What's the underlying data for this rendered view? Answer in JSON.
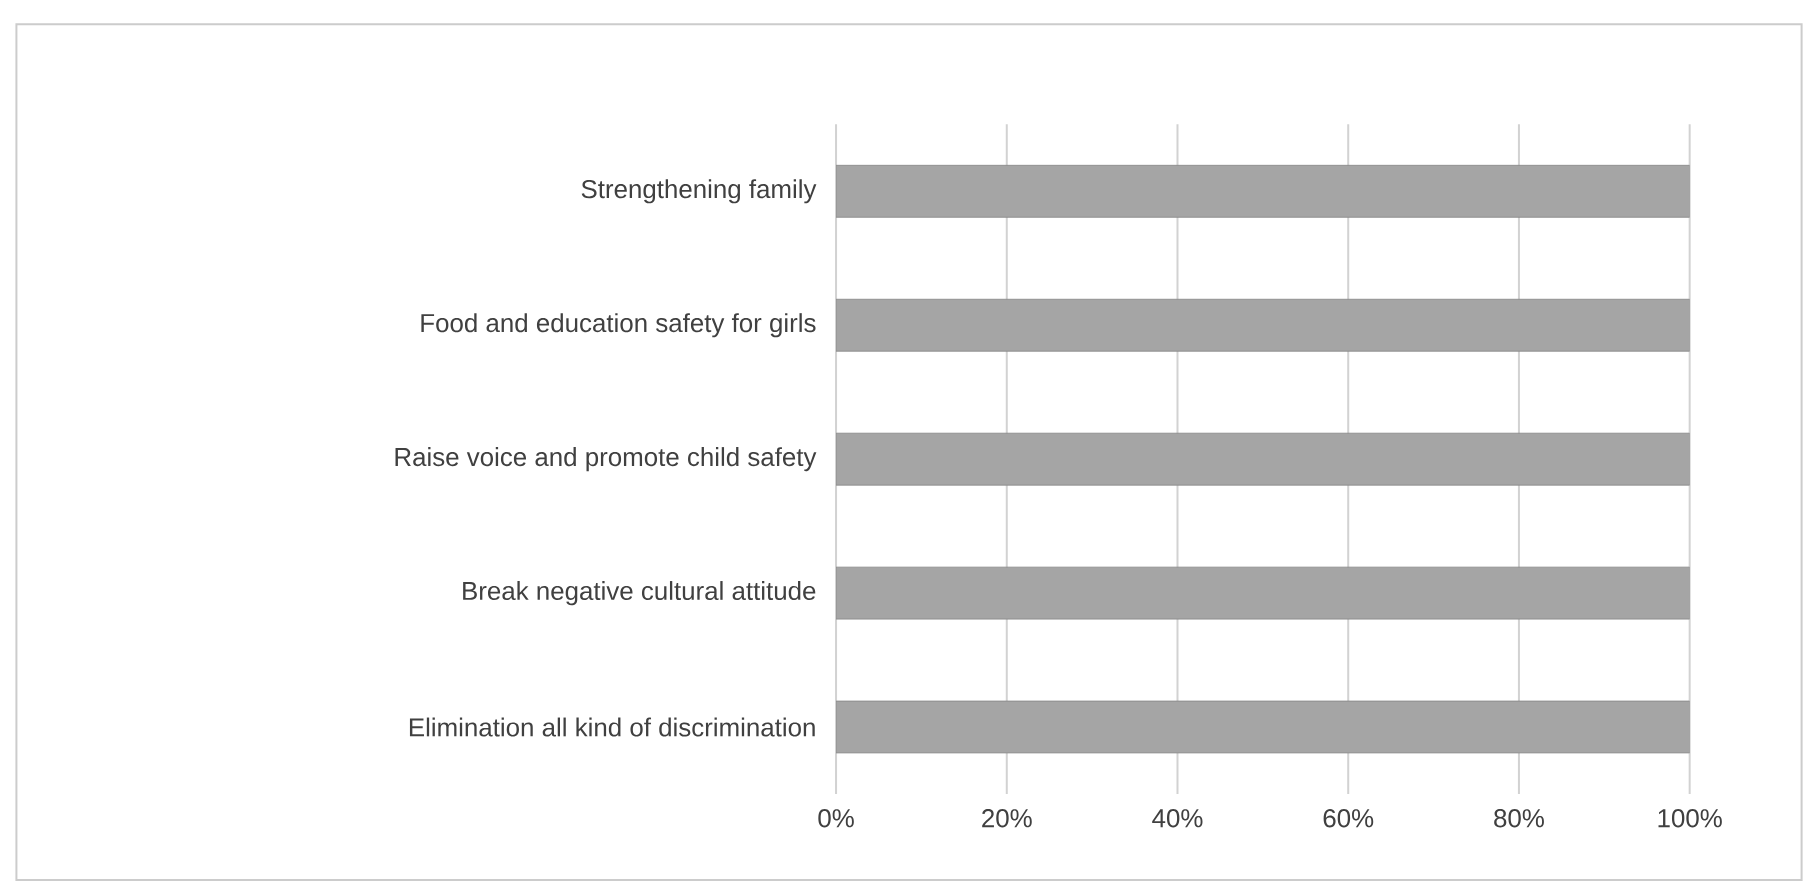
{
  "chart_data": {
    "type": "bar",
    "orientation": "horizontal",
    "categories": [
      "Strengthening family",
      "Food and education safety for girls",
      "Raise voice and promote child safety",
      "Break negative cultural attitude",
      "Elimination all kind of discrimination"
    ],
    "values": [
      100,
      100,
      100,
      100,
      100
    ],
    "color": "#a5a5a5",
    "xlim": [
      0,
      100
    ],
    "xticks": [
      {
        "value": 0,
        "label": "0%"
      },
      {
        "value": 20,
        "label": "20%"
      },
      {
        "value": 40,
        "label": "40%"
      },
      {
        "value": 60,
        "label": "60%"
      },
      {
        "value": 80,
        "label": "80%"
      },
      {
        "value": 100,
        "label": "100%"
      }
    ],
    "grid": "x"
  }
}
